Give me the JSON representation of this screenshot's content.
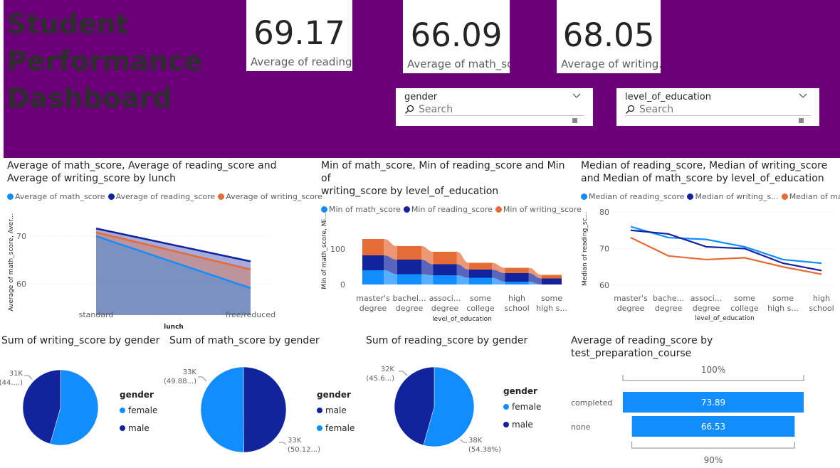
{
  "dashboard": {
    "title": "Student\nPerformance\nDashboard"
  },
  "cards": [
    {
      "value": "69.17",
      "label": "Average of reading..."
    },
    {
      "value": "66.09",
      "label": "Average of math_sc..."
    },
    {
      "value": "68.05",
      "label": "Average of writing..."
    }
  ],
  "slicers": [
    {
      "field": "gender",
      "placeholder": "Search"
    },
    {
      "field": "level_of_education",
      "placeholder": "Search"
    }
  ],
  "colors": {
    "banner": "#6c007a",
    "light_blue": "#118dff",
    "dark_blue": "#12239e",
    "orange": "#e66c37",
    "area_fill": "#8f6f96"
  },
  "chart_data": [
    {
      "id": "lunch",
      "type": "area",
      "title": "Average of math_score, Average of reading_score and Average of writing_score by lunch",
      "title_lines": [
        "Average of math_score, Average of reading_score and",
        "Average of writing_score by lunch"
      ],
      "xlabel": "lunch",
      "ylabel": "Average of math_score, Aver...",
      "categories": [
        "standard",
        "free/reduced"
      ],
      "yticks": [
        "60",
        "70"
      ],
      "ylim": [
        56,
        76
      ],
      "series": [
        {
          "name": "Average of math_score",
          "color": "#118dff",
          "values": [
            70.0,
            59.1
          ]
        },
        {
          "name": "Average of reading_score",
          "color": "#12239e",
          "values": [
            71.6,
            64.7
          ]
        },
        {
          "name": "Average of writing_score",
          "color": "#e66c37",
          "values": [
            70.8,
            63.0
          ]
        }
      ]
    },
    {
      "id": "min_edu",
      "type": "bar",
      "stacked": true,
      "title": "Min of math_score, Min of reading_score and Min of writing_score by level_of_education",
      "title_lines": [
        "Min of math_score, Min of reading_score and Min of",
        "writing_score by level_of_education"
      ],
      "xlabel": "level_of_education",
      "ylabel": "Min of math_score, Mi...",
      "categories": [
        "master's degree",
        "bachelor's degree",
        "associate's degree",
        "some college",
        "high school",
        "some high school"
      ],
      "category_labels": [
        [
          "master's",
          "degree"
        ],
        [
          "bachel...",
          "degree"
        ],
        [
          "associ...",
          "degree"
        ],
        [
          "some",
          "college"
        ],
        [
          "high",
          "school"
        ],
        [
          "some",
          "high s..."
        ]
      ],
      "yticks": [
        "0",
        "100"
      ],
      "ylim": [
        0,
        140
      ],
      "series": [
        {
          "name": "Min of math_score",
          "color": "#118dff",
          "values": [
            40,
            29,
            26,
            19,
            8,
            0
          ]
        },
        {
          "name": "Min of reading_score",
          "color": "#12239e",
          "values": [
            42,
            41,
            31,
            23,
            24,
            17
          ]
        },
        {
          "name": "Min of writing_score",
          "color": "#e66c37",
          "values": [
            46,
            38,
            35,
            19,
            15,
            10
          ]
        }
      ]
    },
    {
      "id": "median_edu",
      "type": "line",
      "title": "Median of reading_score, Median of writing_score and Median of math_score by level_of_education",
      "title_lines": [
        "Median of reading_score, Median of writing_score",
        "and Median of math_score by level_of_education"
      ],
      "xlabel": "level_of_education",
      "ylabel": "Median of reading_sc...",
      "categories": [
        "master's degree",
        "bachelor's degree",
        "associate's degree",
        "some college",
        "some high school",
        "high school"
      ],
      "category_labels": [
        [
          "master's",
          "degree"
        ],
        [
          "bache...",
          "degree"
        ],
        [
          "associ...",
          "degree"
        ],
        [
          "some",
          "college"
        ],
        [
          "some",
          "high s..."
        ],
        [
          "high",
          "school"
        ]
      ],
      "yticks": [
        "60",
        "70",
        "80"
      ],
      "ylim": [
        60,
        80
      ],
      "legend_labels": [
        "Median of reading_score",
        "Median of writing_s...",
        "Median of mat..."
      ],
      "series": [
        {
          "name": "Median of reading_score",
          "color": "#118dff",
          "values": [
            76,
            73,
            72.5,
            70.5,
            67,
            66
          ]
        },
        {
          "name": "Median of writing_score",
          "color": "#12239e",
          "values": [
            75,
            74,
            70.5,
            70,
            66,
            64
          ]
        },
        {
          "name": "Median of math_score",
          "color": "#e66c37",
          "values": [
            73,
            68,
            67,
            67.5,
            65,
            63
          ]
        }
      ]
    },
    {
      "id": "writing_gender",
      "type": "pie",
      "title": "Sum of writing_score by gender",
      "legend_title": "gender",
      "slices": [
        {
          "name": "female",
          "value": 37000,
          "color": "#118dff"
        },
        {
          "name": "male",
          "value": 31000,
          "color": "#12239e"
        }
      ],
      "data_labels": [
        {
          "text": "31K",
          "sub": "(44....)"
        }
      ]
    },
    {
      "id": "math_gender",
      "type": "pie",
      "title": "Sum of math_score by gender",
      "legend_title": "gender",
      "legend_order": [
        "male",
        "female"
      ],
      "slices": [
        {
          "name": "male",
          "value": 49.88,
          "color": "#12239e"
        },
        {
          "name": "female",
          "value": 50.12,
          "color": "#118dff"
        }
      ],
      "data_labels": [
        {
          "text": "33K",
          "sub": "(49.88...)"
        },
        {
          "text": "33K",
          "sub": "(50.12...)"
        }
      ]
    },
    {
      "id": "reading_gender",
      "type": "pie",
      "title": "Sum of reading_score by gender",
      "legend_title": "gender",
      "slices": [
        {
          "name": "female",
          "value": 54.38,
          "color": "#118dff"
        },
        {
          "name": "male",
          "value": 45.62,
          "color": "#12239e"
        }
      ],
      "data_labels": [
        {
          "text": "32K",
          "sub": "(45.6...)"
        },
        {
          "text": "38K",
          "sub": "(54.38%)"
        }
      ]
    },
    {
      "id": "funnel",
      "type": "bar",
      "title": "Average of reading_score by test_preparation_course",
      "title_lines": [
        "Average of reading_score by",
        "test_preparation_course"
      ],
      "categories": [
        "completed",
        "none"
      ],
      "values": [
        73.89,
        66.53
      ],
      "top_label": "100%",
      "bottom_label": "90%",
      "color": "#118dff"
    }
  ]
}
